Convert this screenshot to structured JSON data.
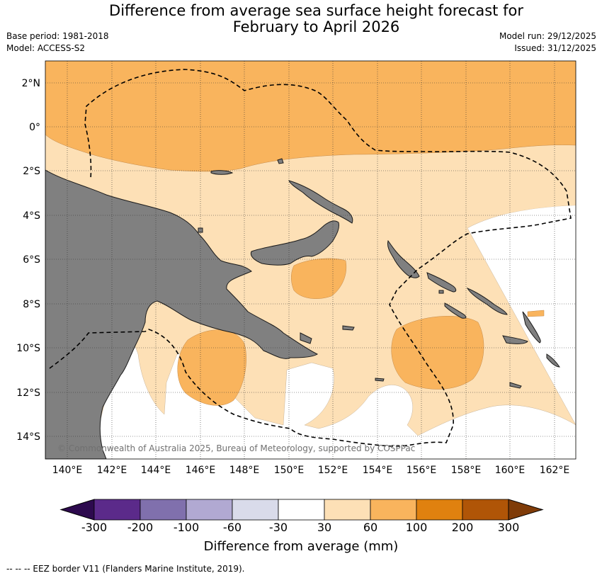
{
  "title_line1": "Difference from average sea surface height forecast for",
  "title_line2": "February to April 2026",
  "base_period": "Base period: 1981-2018",
  "model": "Model: ACCESS-S2",
  "model_run": "Model run: 29/12/2025",
  "issued": "Issued: 31/12/2025",
  "lat_labels": [
    "2°N",
    "0°",
    "2°S",
    "4°S",
    "6°S",
    "8°S",
    "10°S",
    "12°S",
    "14°S"
  ],
  "lon_labels": [
    "140°E",
    "142°E",
    "144°E",
    "146°E",
    "148°E",
    "150°E",
    "152°E",
    "154°E",
    "156°E",
    "158°E",
    "160°E",
    "162°E"
  ],
  "copyright": "© Commonwealth of Australia 2025, Bureau of Meteorology, supported by COSPPac",
  "colorbar": {
    "title": "Difference from average (mm)",
    "ticks": [
      "-300",
      "-200",
      "-100",
      "-60",
      "-30",
      "30",
      "60",
      "100",
      "200",
      "300"
    ],
    "colors": [
      "#2d0a4e",
      "#5b2a8a",
      "#8070ad",
      "#b1a9d2",
      "#d9dbea",
      "#ffffff",
      "#fde0b6",
      "#f9b45d",
      "#e0810f",
      "#b05507",
      "#7f3b08"
    ]
  },
  "legend_text": "--  --  -- EEZ border V11 (Flanders Marine Institute, 2019).",
  "colors": {
    "land": "#808080",
    "c30_60": "#fde0b6",
    "c60_100": "#f9b45d"
  }
}
